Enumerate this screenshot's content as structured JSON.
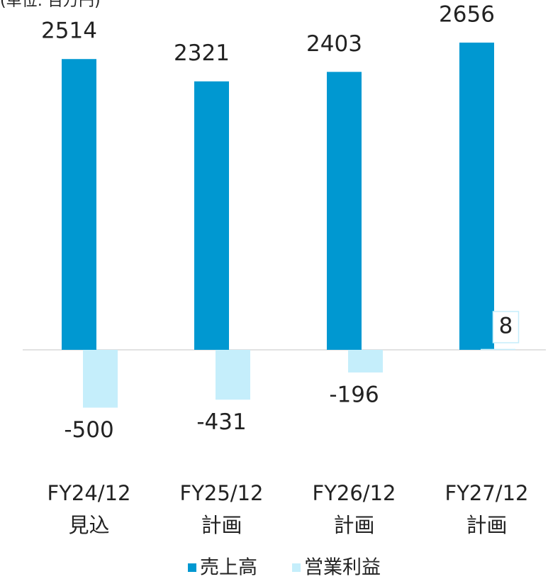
{
  "chart_data": {
    "type": "bar",
    "unit_label": "(単位: 百万円)",
    "categories": [
      "FY24/12\n見込",
      "FY25/12\n計画",
      "FY26/12\n計画",
      "FY27/12\n計画"
    ],
    "series": [
      {
        "name": "売上高",
        "color": "#0098d1",
        "values": [
          2514,
          2321,
          2403,
          2656
        ]
      },
      {
        "name": "営業利益",
        "color": "#c5eefb",
        "values": [
          -500,
          -431,
          -196,
          8
        ]
      }
    ],
    "ylim": [
      -1000,
      3000
    ],
    "legend": "bottom"
  }
}
